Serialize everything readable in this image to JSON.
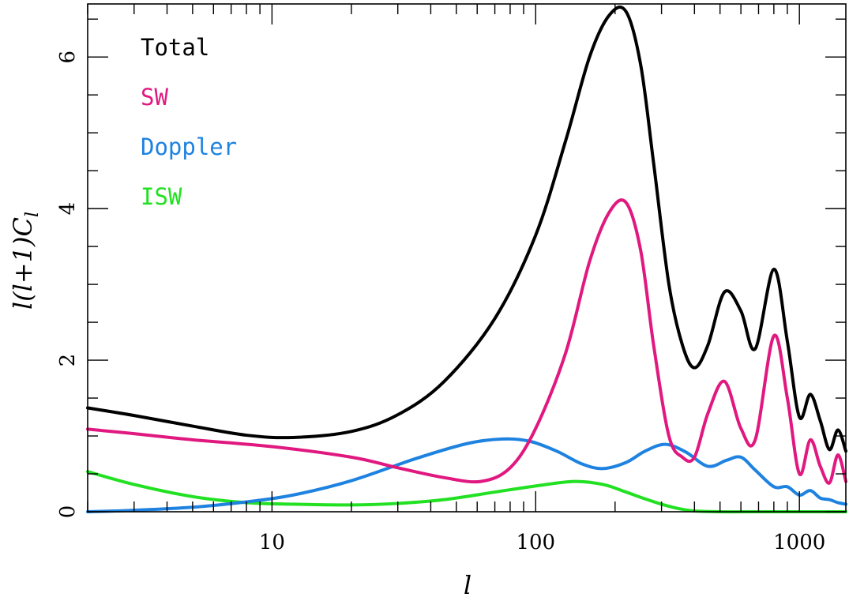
{
  "chart_data": {
    "type": "line",
    "xlabel": "l",
    "ylabel": "l(l+1)C",
    "ylabel_subscript": "l",
    "xscale": "log",
    "xlim": [
      2,
      1500
    ],
    "ylim": [
      0,
      6.7
    ],
    "grid": false,
    "legend_placement": "top-left",
    "xticks": [
      {
        "value": 10,
        "label": "10"
      },
      {
        "value": 100,
        "label": "100"
      },
      {
        "value": 1000,
        "label": "1000"
      }
    ],
    "yticks": [
      {
        "value": 0,
        "label": "0"
      },
      {
        "value": 2,
        "label": "2"
      },
      {
        "value": 4,
        "label": "4"
      },
      {
        "value": 6,
        "label": "6"
      }
    ],
    "series": [
      {
        "name": "Total",
        "color": "#000000",
        "x": [
          2,
          3,
          5,
          8,
          12,
          20,
          30,
          45,
          70,
          100,
          130,
          160,
          190,
          220,
          250,
          280,
          320,
          360,
          400,
          450,
          520,
          600,
          680,
          800,
          900,
          1000,
          1100,
          1200,
          1300,
          1400,
          1500
        ],
        "y": [
          1.37,
          1.27,
          1.13,
          1.01,
          0.98,
          1.06,
          1.28,
          1.72,
          2.55,
          3.65,
          4.9,
          6.0,
          6.55,
          6.6,
          5.9,
          4.6,
          3.0,
          2.2,
          1.9,
          2.2,
          2.9,
          2.65,
          2.15,
          3.2,
          2.25,
          1.25,
          1.55,
          1.2,
          0.82,
          1.08,
          0.8
        ]
      },
      {
        "name": "SW",
        "color": "#e0187f",
        "x": [
          2,
          3,
          5,
          10,
          20,
          30,
          45,
          62,
          80,
          100,
          130,
          160,
          190,
          220,
          250,
          280,
          320,
          360,
          400,
          450,
          520,
          600,
          680,
          800,
          900,
          1000,
          1100,
          1200,
          1300,
          1400,
          1500
        ],
        "y": [
          1.09,
          1.03,
          0.95,
          0.86,
          0.72,
          0.58,
          0.45,
          0.4,
          0.58,
          1.1,
          2.1,
          3.3,
          3.95,
          4.08,
          3.45,
          2.2,
          1.0,
          0.72,
          0.72,
          1.3,
          1.72,
          1.1,
          0.95,
          2.32,
          1.5,
          0.5,
          0.95,
          0.6,
          0.38,
          0.75,
          0.4
        ]
      },
      {
        "name": "Doppler",
        "color": "#1e82e0",
        "x": [
          2,
          3,
          5,
          8,
          12,
          20,
          35,
          55,
          75,
          95,
          120,
          150,
          180,
          220,
          260,
          310,
          370,
          450,
          530,
          600,
          680,
          800,
          900,
          1000,
          1100,
          1200,
          1300,
          1400,
          1500
        ],
        "y": [
          0.0,
          0.02,
          0.06,
          0.13,
          0.22,
          0.41,
          0.7,
          0.9,
          0.96,
          0.93,
          0.8,
          0.63,
          0.57,
          0.65,
          0.8,
          0.89,
          0.79,
          0.6,
          0.68,
          0.72,
          0.55,
          0.33,
          0.33,
          0.22,
          0.28,
          0.18,
          0.16,
          0.12,
          0.1
        ]
      },
      {
        "name": "ISW",
        "color": "#22e022",
        "x": [
          2,
          3,
          5,
          8,
          12,
          20,
          30,
          45,
          70,
          100,
          140,
          180,
          220,
          260,
          300,
          350,
          400,
          500,
          700,
          1000,
          1500
        ],
        "y": [
          0.53,
          0.36,
          0.2,
          0.12,
          0.1,
          0.09,
          0.11,
          0.16,
          0.26,
          0.34,
          0.4,
          0.36,
          0.26,
          0.17,
          0.1,
          0.04,
          0.01,
          0.0,
          0.0,
          0.0,
          0.0
        ]
      }
    ]
  }
}
